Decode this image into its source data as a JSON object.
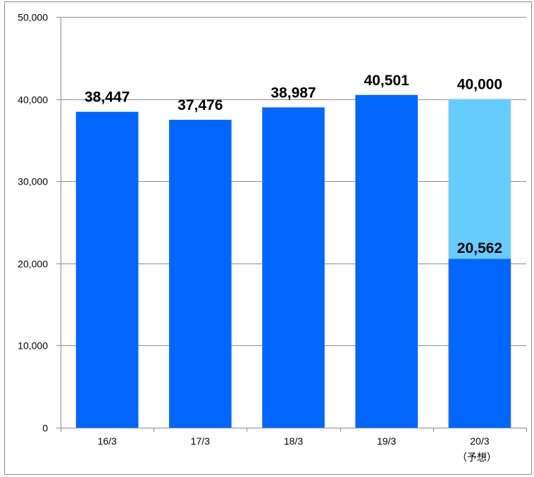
{
  "chart_data": {
    "type": "bar",
    "categories": [
      "16/3",
      "17/3",
      "18/3",
      "19/3",
      "20/3"
    ],
    "category_sublabels": [
      "",
      "",
      "",
      "",
      "（予想）"
    ],
    "series": [
      {
        "values": [
          38447,
          37476,
          38987,
          40501,
          20562
        ],
        "color": "#0066ff"
      },
      {
        "values": [
          0,
          0,
          0,
          0,
          19438
        ],
        "color": "#66ccff"
      }
    ],
    "labels": [
      "38,447",
      "37,476",
      "38,987",
      "40,501",
      "40,000"
    ],
    "extra_labels": [
      {
        "category": "20/3",
        "text": "20,562",
        "value": 20562
      }
    ],
    "stacked": true,
    "ylim": [
      0,
      50000
    ],
    "yticks": [
      0,
      10000,
      20000,
      30000,
      40000,
      50000
    ],
    "ytick_labels": [
      "0",
      "10,000",
      "20,000",
      "30,000",
      "40,000",
      "50,000"
    ],
    "title": "",
    "xlabel": "",
    "ylabel": "",
    "grid": true,
    "legend": "none"
  }
}
